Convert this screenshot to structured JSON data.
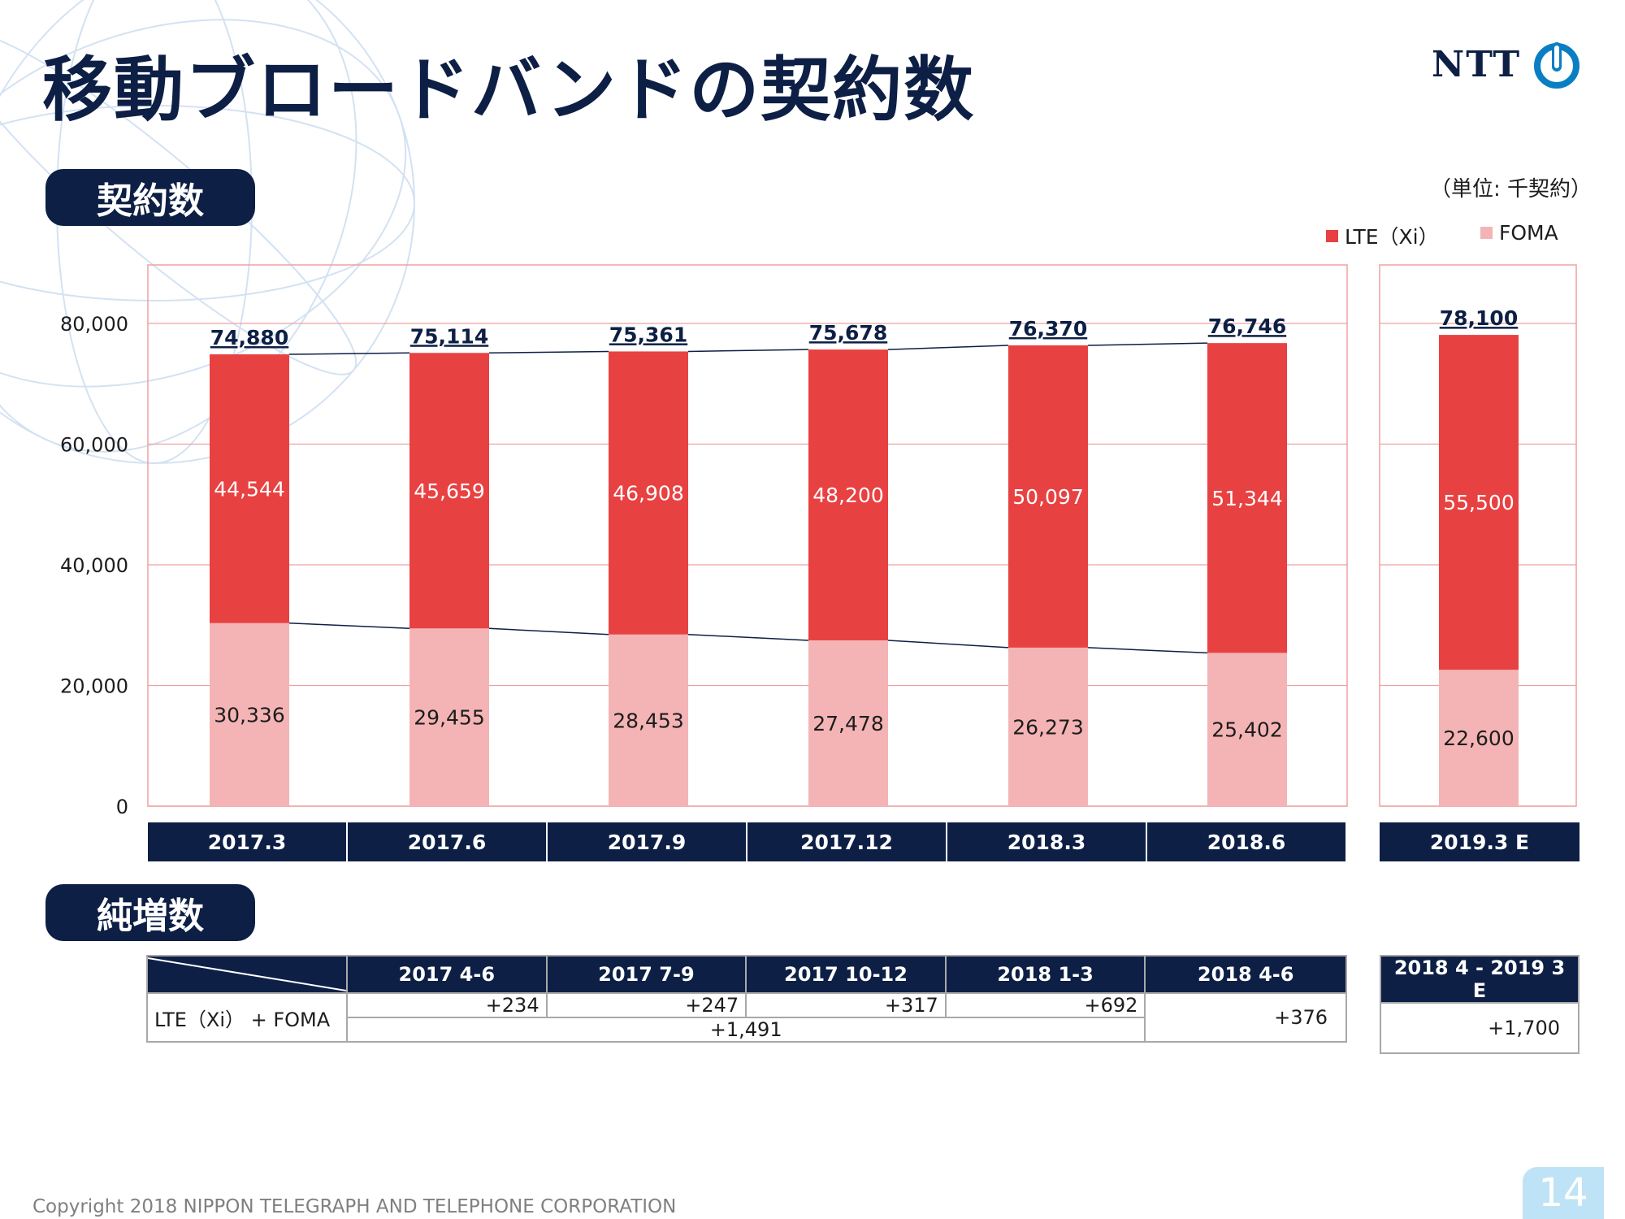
{
  "title": "移動ブロードバンドの契約数",
  "logo": {
    "text": "NTT"
  },
  "section_contracts": "契約数",
  "section_net_increase": "純増数",
  "unit": "（単位: 千契約）",
  "colors": {
    "lte": "#e84142",
    "foma": "#f4b4b5",
    "navy": "#0d1f45",
    "grid": "#f0a0a0"
  },
  "chart_data": {
    "type": "bar",
    "stacked": true,
    "categories": [
      "2017.3",
      "2017.6",
      "2017.9",
      "2017.12",
      "2018.3",
      "2018.6",
      "2019.3 E"
    ],
    "series": [
      {
        "name": "FOMA",
        "values": [
          30336,
          29455,
          28453,
          27478,
          26273,
          25402,
          22600
        ]
      },
      {
        "name": "LTE（Xi）",
        "values": [
          44544,
          45659,
          46908,
          48200,
          50097,
          51344,
          55500
        ]
      }
    ],
    "totals": [
      74880,
      75114,
      75361,
      75678,
      76370,
      76746,
      78100
    ],
    "value_labels": {
      "foma": [
        "30,336",
        "29,455",
        "28,453",
        "27,478",
        "26,273",
        "25,402",
        "22,600"
      ],
      "lte": [
        "44,544",
        "45,659",
        "46,908",
        "48,200",
        "50,097",
        "51,344",
        "55,500"
      ],
      "totals": [
        "74,880",
        "75,114",
        "75,361",
        "75,678",
        "76,370",
        "76,746",
        "78,100"
      ]
    },
    "yticks": [
      "0",
      "20,000",
      "40,000",
      "60,000",
      "80,000"
    ],
    "ylim": [
      0,
      80000
    ],
    "grid": true,
    "legend_position": "top-right"
  },
  "net_increase": {
    "header": [
      "2017 4-6",
      "2017 7-9",
      "2017 10-12",
      "2018 1-3",
      "2018 4-6"
    ],
    "row_label": "LTE（Xi） + FOMA",
    "quarterly": [
      "+234",
      "+247",
      "+317",
      "+692"
    ],
    "subtotal": "+1,491",
    "q_2018_4_6": "+376",
    "forecast_header": "2018 4 - 2019 3 E",
    "forecast_value": "+1,700"
  },
  "footer": "Copyright 2018 NIPPON TELEGRAPH AND TELEPHONE CORPORATION",
  "page_number": "14"
}
